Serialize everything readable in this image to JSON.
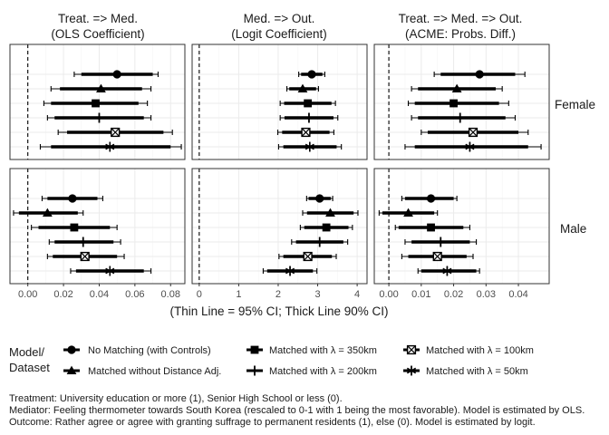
{
  "chart_data": {
    "type": "forest",
    "xlabel": "(Thin Line = 95% CI; Thick Line 90% CI)",
    "columns": [
      {
        "title_line1": "Treat. => Med.",
        "title_line2": "(OLS Coefficient)",
        "xlim": [
          -0.01,
          0.088
        ],
        "ticks": [
          0.0,
          0.02,
          0.04,
          0.06,
          0.08
        ],
        "tick_labels": [
          "0.00",
          "0.02",
          "0.04",
          "0.06",
          "0.08"
        ],
        "ref_line": 0
      },
      {
        "title_line1": "Med. => Out.",
        "title_line2": "(Logit Coefficient)",
        "xlim": [
          -0.18,
          4.25
        ],
        "ticks": [
          0,
          1,
          2,
          3,
          4
        ],
        "tick_labels": [
          "0",
          "1",
          "2",
          "3",
          "4"
        ],
        "ref_line": 0
      },
      {
        "title_line1": "Treat. => Med. => Out.",
        "title_line2": "(ACME: Probs. Diff.)",
        "xlim": [
          -0.0045,
          0.0495
        ],
        "ticks": [
          0.0,
          0.01,
          0.02,
          0.03,
          0.04
        ],
        "tick_labels": [
          "0.00",
          "0.01",
          "0.02",
          "0.03",
          "0.04"
        ],
        "ref_line": 0
      }
    ],
    "rows": [
      "Female",
      "Male"
    ],
    "series": [
      {
        "name": "No Matching (with Controls)",
        "marker": "circle"
      },
      {
        "name": "Matched without Distance Adj.",
        "marker": "triangle"
      },
      {
        "name": "Matched with  λ = 350km",
        "marker": "square"
      },
      {
        "name": "Matched with  λ = 200km",
        "marker": "plus"
      },
      {
        "name": "Matched with  λ = 100km",
        "marker": "square-open-x"
      },
      {
        "name": "Matched with  λ = 50km",
        "marker": "asterisk"
      }
    ],
    "estimates": {
      "Female": [
        [
          [
            0.05,
            0.026,
            0.073,
            0.03,
            0.07
          ],
          [
            2.85,
            2.52,
            3.18,
            2.58,
            3.12
          ],
          [
            0.028,
            0.014,
            0.042,
            0.016,
            0.039
          ]
        ],
        [
          [
            0.041,
            0.013,
            0.069,
            0.018,
            0.064
          ],
          [
            2.62,
            2.22,
            3.02,
            2.28,
            2.96
          ],
          [
            0.021,
            0.007,
            0.035,
            0.009,
            0.033
          ]
        ],
        [
          [
            0.038,
            0.009,
            0.067,
            0.013,
            0.062
          ],
          [
            2.75,
            2.05,
            3.45,
            2.15,
            3.35
          ],
          [
            0.02,
            0.006,
            0.037,
            0.008,
            0.034
          ]
        ],
        [
          [
            0.04,
            0.011,
            0.069,
            0.015,
            0.065
          ],
          [
            2.78,
            2.05,
            3.51,
            2.16,
            3.4
          ],
          [
            0.022,
            0.007,
            0.039,
            0.009,
            0.036
          ]
        ],
        [
          [
            0.049,
            0.017,
            0.081,
            0.022,
            0.076
          ],
          [
            2.7,
            1.99,
            3.41,
            2.1,
            3.3
          ],
          [
            0.026,
            0.01,
            0.043,
            0.012,
            0.04
          ]
        ],
        [
          [
            0.046,
            0.007,
            0.086,
            0.013,
            0.08
          ],
          [
            2.8,
            2.01,
            3.6,
            2.13,
            3.48
          ],
          [
            0.025,
            0.005,
            0.047,
            0.008,
            0.043
          ]
        ]
      ],
      "Male": [
        [
          [
            0.025,
            0.008,
            0.042,
            0.011,
            0.039
          ],
          [
            3.05,
            2.72,
            3.38,
            2.77,
            3.33
          ],
          [
            0.013,
            0.004,
            0.021,
            0.005,
            0.02
          ]
        ],
        [
          [
            0.011,
            -0.008,
            0.031,
            -0.005,
            0.028
          ],
          [
            3.32,
            2.62,
            4.02,
            2.73,
            3.91
          ],
          [
            0.006,
            -0.003,
            0.015,
            -0.002,
            0.014
          ]
        ],
        [
          [
            0.026,
            0.002,
            0.05,
            0.006,
            0.046
          ],
          [
            3.22,
            2.56,
            3.88,
            2.66,
            3.78
          ],
          [
            0.013,
            0.002,
            0.025,
            0.003,
            0.023
          ]
        ],
        [
          [
            0.031,
            0.012,
            0.052,
            0.015,
            0.048
          ],
          [
            3.05,
            2.34,
            3.76,
            2.45,
            3.65
          ],
          [
            0.016,
            0.005,
            0.027,
            0.007,
            0.025
          ]
        ],
        [
          [
            0.032,
            0.011,
            0.054,
            0.014,
            0.05
          ],
          [
            2.75,
            2.02,
            3.47,
            2.13,
            3.36
          ],
          [
            0.015,
            0.004,
            0.026,
            0.006,
            0.024
          ]
        ],
        [
          [
            0.046,
            0.024,
            0.069,
            0.027,
            0.065
          ],
          [
            2.3,
            1.62,
            2.98,
            1.72,
            2.88
          ],
          [
            0.018,
            0.009,
            0.028,
            0.01,
            0.027
          ]
        ]
      ]
    },
    "estimate_format": "[estimate, ci95_low, ci95_high, ci90_low, ci90_high]",
    "legend": {
      "title_line1": "Model/",
      "title_line2": "Dataset",
      "position": "bottom"
    },
    "grid": true,
    "notes": [
      "Treatment: University education or more (1), Senior High School or less (0).",
      "Mediator: Feeling thermometer towards South Korea (rescaled to 0-1 with 1 being the most favorable). Model is estimated by OLS.",
      "Outcome: Rather agree or agree with granting suffrage to permanent residents (1), else (0). Model is estimated by logit."
    ]
  },
  "colors": {
    "panel_border": "#333333",
    "grid_major": "#ebebeb",
    "grid_minor": "#f5f5f5",
    "ink": "#000000"
  }
}
